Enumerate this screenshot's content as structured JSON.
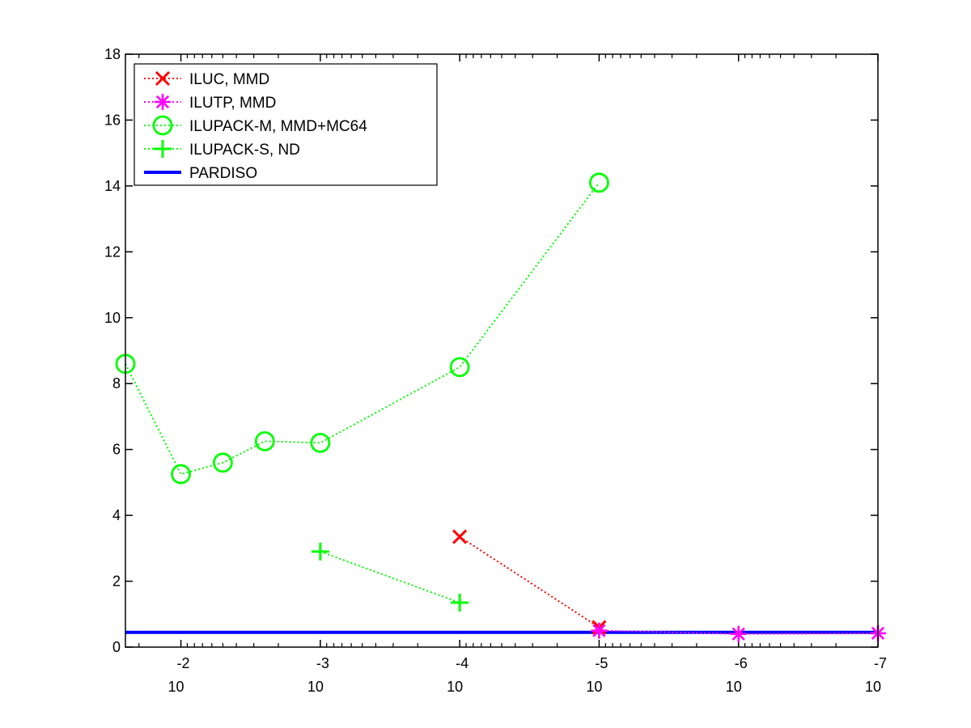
{
  "chart_data": {
    "type": "line",
    "title": "",
    "xlabel": "",
    "ylabel": "",
    "x_scale": "log",
    "x_direction": "reversed",
    "xlim": [
      0.025,
      1e-07
    ],
    "ylim": [
      0,
      18
    ],
    "x_ticks": [
      {
        "value": 0.01,
        "base": "10",
        "exponent": "-2"
      },
      {
        "value": 0.001,
        "base": "10",
        "exponent": "-3"
      },
      {
        "value": 0.0001,
        "base": "10",
        "exponent": "-4"
      },
      {
        "value": 1e-05,
        "base": "10",
        "exponent": "-5"
      },
      {
        "value": 1e-06,
        "base": "10",
        "exponent": "-6"
      },
      {
        "value": 1e-07,
        "base": "10",
        "exponent": "-7"
      }
    ],
    "y_ticks": [
      "0",
      "2",
      "4",
      "6",
      "8",
      "10",
      "12",
      "14",
      "16",
      "18"
    ],
    "grid": false,
    "legend_position": "top-left",
    "series": [
      {
        "name": "ILUC, MMD",
        "color": "#ff0000",
        "marker": "x",
        "line": "dotted",
        "x": [
          0.0001,
          1e-05
        ],
        "y": [
          3.35,
          0.6
        ]
      },
      {
        "name": "ILUTP, MMD",
        "color": "#ff00ff",
        "marker": "asterisk",
        "line": "dotted",
        "x": [
          1e-05,
          1e-06,
          1e-07
        ],
        "y": [
          0.5,
          0.4,
          0.42
        ]
      },
      {
        "name": "ILUPACK-M, MMD+MC64",
        "color": "#00ff00",
        "marker": "circle",
        "line": "dotted",
        "x": [
          0.025,
          0.01,
          0.005,
          0.0025,
          0.001,
          0.0001,
          1e-05
        ],
        "y": [
          8.6,
          5.25,
          5.6,
          6.25,
          6.2,
          8.5,
          14.1
        ]
      },
      {
        "name": "ILUPACK-S, ND",
        "color": "#00ff00",
        "marker": "plus",
        "line": "dotted",
        "x": [
          0.001,
          0.0001
        ],
        "y": [
          2.9,
          1.35
        ]
      },
      {
        "name": "PARDISO",
        "color": "#0000ff",
        "marker": "none",
        "line": "solid",
        "x": [
          0.025,
          1e-07
        ],
        "y": [
          0.45,
          0.45
        ]
      }
    ]
  }
}
